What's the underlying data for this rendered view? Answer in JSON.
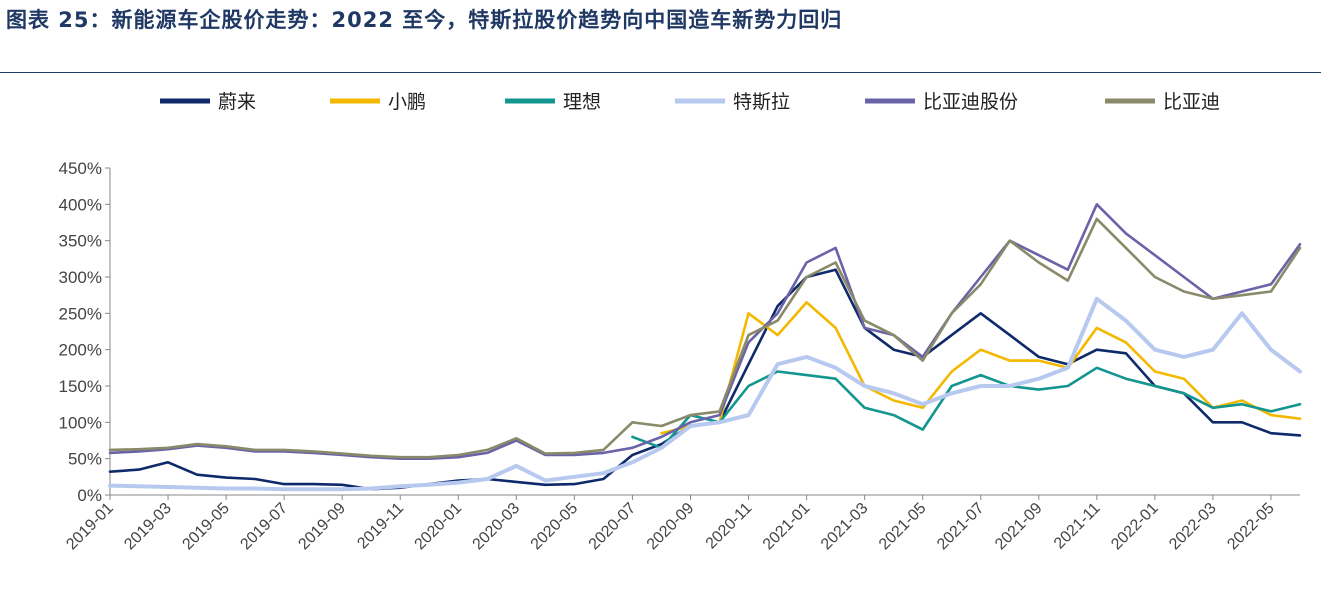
{
  "header": {
    "title": "图表 25：新能源车企股价走势：2022 至今，特斯拉股价趋势向中国造车新势力回归"
  },
  "chart_data": {
    "type": "line",
    "title": "图表 25：新能源车企股价走势：2022 至今，特斯拉股价趋势向中国造车新势力回归",
    "x": [
      "2019-01",
      "2019-02",
      "2019-03",
      "2019-04",
      "2019-05",
      "2019-06",
      "2019-07",
      "2019-08",
      "2019-09",
      "2019-10",
      "2019-11",
      "2019-12",
      "2020-01",
      "2020-02",
      "2020-03",
      "2020-04",
      "2020-05",
      "2020-06",
      "2020-07",
      "2020-08",
      "2020-09",
      "2020-10",
      "2020-11",
      "2020-12",
      "2021-01",
      "2021-02",
      "2021-03",
      "2021-04",
      "2021-05",
      "2021-06",
      "2021-07",
      "2021-08",
      "2021-09",
      "2021-10",
      "2021-11",
      "2021-12",
      "2022-01",
      "2022-02",
      "2022-03",
      "2022-04",
      "2022-05",
      "2022-06"
    ],
    "x_tick_labels": [
      "2019-01",
      "2019-03",
      "2019-05",
      "2019-07",
      "2019-09",
      "2019-11",
      "2020-01",
      "2020-03",
      "2020-05",
      "2020-07",
      "2020-09",
      "2020-11",
      "2021-01",
      "2021-03",
      "2021-05",
      "2021-07",
      "2021-09",
      "2021-11",
      "2022-01",
      "2022-03",
      "2022-05"
    ],
    "y_tick_labels": [
      "0%",
      "50%",
      "100%",
      "150%",
      "200%",
      "250%",
      "300%",
      "350%",
      "400%",
      "450%"
    ],
    "ylim": [
      0,
      450
    ],
    "y_unit": "%",
    "grid": false,
    "legend_position": "top",
    "series": [
      {
        "name": "蔚来",
        "color": "#0f2a6b",
        "values": [
          32,
          35,
          45,
          28,
          24,
          22,
          15,
          15,
          14,
          8,
          10,
          15,
          20,
          22,
          18,
          14,
          15,
          22,
          55,
          70,
          95,
          100,
          180,
          260,
          300,
          310,
          230,
          200,
          190,
          220,
          250,
          220,
          190,
          180,
          200,
          195,
          150,
          140,
          100,
          100,
          85,
          82
        ]
      },
      {
        "name": "小鹏",
        "color": "#f5b800",
        "values": [
          null,
          null,
          null,
          null,
          null,
          null,
          null,
          null,
          null,
          null,
          null,
          null,
          null,
          null,
          null,
          null,
          null,
          null,
          null,
          85,
          95,
          100,
          250,
          220,
          265,
          230,
          150,
          130,
          120,
          170,
          200,
          185,
          185,
          175,
          230,
          210,
          170,
          160,
          120,
          130,
          110,
          105
        ]
      },
      {
        "name": "理想",
        "color": "#12968f",
        "values": [
          null,
          null,
          null,
          null,
          null,
          null,
          null,
          null,
          null,
          null,
          null,
          null,
          null,
          null,
          null,
          null,
          null,
          null,
          80,
          65,
          110,
          100,
          150,
          170,
          165,
          160,
          120,
          110,
          90,
          150,
          165,
          150,
          145,
          150,
          175,
          160,
          150,
          140,
          120,
          125,
          115,
          125
        ]
      },
      {
        "name": "特斯拉",
        "color": "#b8c9f0",
        "values": [
          13,
          12,
          11,
          10,
          9,
          9,
          8,
          8,
          8,
          9,
          12,
          14,
          17,
          22,
          40,
          20,
          25,
          30,
          45,
          65,
          95,
          100,
          110,
          180,
          190,
          175,
          150,
          140,
          125,
          140,
          150,
          150,
          160,
          175,
          270,
          240,
          200,
          190,
          200,
          250,
          200,
          170
        ]
      },
      {
        "name": "比亚迪股份",
        "color": "#6b63a8",
        "values": [
          58,
          60,
          63,
          68,
          65,
          60,
          60,
          58,
          55,
          52,
          50,
          50,
          52,
          58,
          75,
          55,
          55,
          58,
          65,
          80,
          100,
          110,
          210,
          250,
          320,
          340,
          230,
          220,
          190,
          250,
          300,
          350,
          330,
          310,
          400,
          360,
          330,
          300,
          270,
          280,
          290,
          345
        ]
      },
      {
        "name": "比亚迪",
        "color": "#8a8a6a",
        "values": [
          62,
          63,
          65,
          70,
          67,
          62,
          62,
          60,
          57,
          54,
          52,
          52,
          55,
          62,
          78,
          57,
          58,
          62,
          100,
          95,
          110,
          115,
          220,
          240,
          300,
          320,
          240,
          220,
          185,
          250,
          290,
          350,
          320,
          295,
          380,
          340,
          300,
          280,
          270,
          275,
          280,
          340
        ]
      }
    ]
  }
}
